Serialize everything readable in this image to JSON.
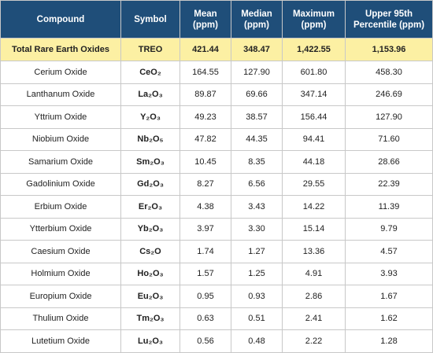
{
  "table": {
    "header": [
      "Compound",
      "Symbol",
      "Mean\n(ppm)",
      "Median\n(ppm)",
      "Maximum\n(ppm)",
      "Upper 95th\nPercentile (ppm)"
    ],
    "rows": [
      [
        "Total Rare Earth Oxides",
        "TREO",
        "421.44",
        "348.47",
        "1,422.55",
        "1,153.96"
      ],
      [
        "Cerium Oxide",
        "CeO₂",
        "164.55",
        "127.90",
        "601.80",
        "458.30"
      ],
      [
        "Lanthanum Oxide",
        "La₂O₃",
        "89.87",
        "69.66",
        "347.14",
        "246.69"
      ],
      [
        "Yttrium Oxide",
        "Y₂O₃",
        "49.23",
        "38.57",
        "156.44",
        "127.90"
      ],
      [
        "Niobium Oxide",
        "Nb₂O₅",
        "47.82",
        "44.35",
        "94.41",
        "71.60"
      ],
      [
        "Samarium Oxide",
        "Sm₂O₃",
        "10.45",
        "8.35",
        "44.18",
        "28.66"
      ],
      [
        "Gadolinium Oxide",
        "Gd₂O₃",
        "8.27",
        "6.56",
        "29.55",
        "22.39"
      ],
      [
        "Erbium Oxide",
        "Er₂O₃",
        "4.38",
        "3.43",
        "14.22",
        "11.39"
      ],
      [
        "Ytterbium Oxide",
        "Yb₂O₃",
        "3.97",
        "3.30",
        "15.14",
        "9.79"
      ],
      [
        "Caesium Oxide",
        "Cs₂O",
        "1.74",
        "1.27",
        "13.36",
        "4.57"
      ],
      [
        "Holmium Oxide",
        "Ho₂O₃",
        "1.57",
        "1.25",
        "4.91",
        "3.93"
      ],
      [
        "Europium Oxide",
        "Eu₂O₃",
        "0.95",
        "0.93",
        "2.86",
        "1.67"
      ],
      [
        "Thulium Oxide",
        "Tm₂O₃",
        "0.63",
        "0.51",
        "2.41",
        "1.62"
      ],
      [
        "Lutetium Oxide",
        "Lu₂O₃",
        "0.56",
        "0.48",
        "2.22",
        "1.28"
      ]
    ]
  }
}
